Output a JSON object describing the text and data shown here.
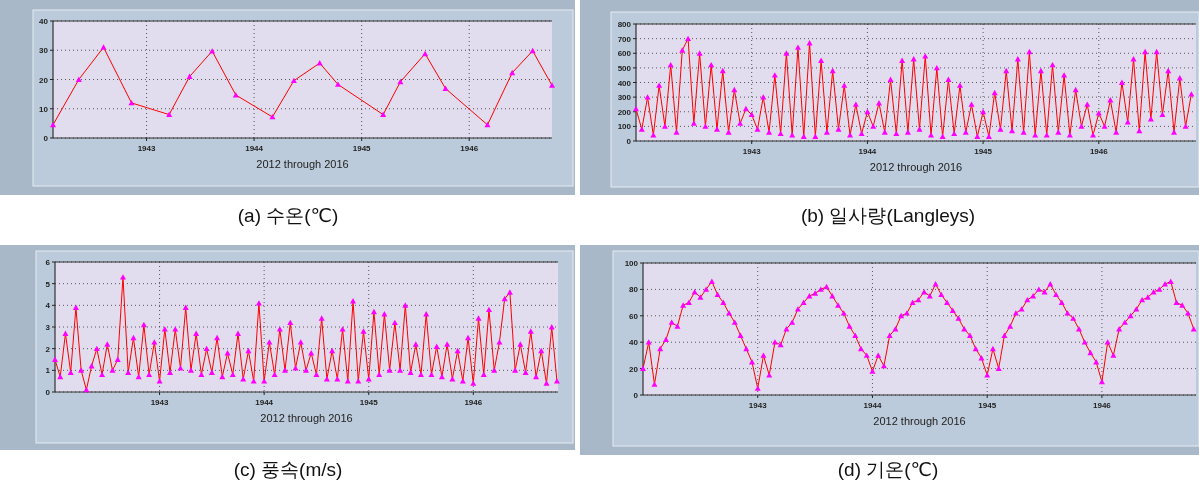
{
  "chart_data": [
    {
      "type": "line",
      "title": "(a) 수온(℃)",
      "xlabel": "2012 through 2016",
      "xlim": [
        1942.13,
        1946.77
      ],
      "xticks": [
        1943,
        1944,
        1945,
        1946
      ],
      "ylim": [
        0,
        40
      ],
      "yticks": [
        0,
        10,
        20,
        30,
        40
      ],
      "grid": true,
      "marker": "triangle",
      "line_style": "solid",
      "series": [
        {
          "color": "#ff00ff",
          "x": [
            1942.13,
            1942.37,
            1942.6,
            1942.86,
            1943.21,
            1943.4,
            1943.61,
            1943.83,
            1944.17,
            1944.37,
            1944.61,
            1944.78,
            1945.2,
            1945.36,
            1945.59,
            1945.78,
            1946.17,
            1946.4,
            1946.59,
            1946.77
          ],
          "values": [
            4.5,
            20,
            31,
            12,
            8,
            21,
            29.7,
            14.7,
            7.2,
            19.6,
            25.6,
            18.3,
            8,
            19.2,
            28.8,
            16.9,
            4.5,
            22.3,
            29.8,
            18
          ]
        }
      ]
    },
    {
      "type": "line",
      "title": "(b) 일사량(Langleys)",
      "xlabel": "2012 through 2016",
      "xlim": [
        1942.0,
        1946.84
      ],
      "xticks": [
        1943,
        1944,
        1945,
        1946
      ],
      "ylim": [
        0,
        800
      ],
      "yticks": [
        0,
        100,
        200,
        300,
        400,
        500,
        600,
        700,
        800
      ],
      "grid": true,
      "marker": "triangle",
      "line_style": "solid",
      "series": [
        {
          "color": "#ff00ff",
          "x": [
            1942.0,
            1942.05,
            1942.1,
            1942.15,
            1942.2,
            1942.25,
            1942.3,
            1942.35,
            1942.4,
            1942.45,
            1942.5,
            1942.55,
            1942.6,
            1942.65,
            1942.7,
            1942.75,
            1942.8,
            1942.85,
            1942.9,
            1942.95,
            1943.0,
            1943.05,
            1943.1,
            1943.15,
            1943.2,
            1943.25,
            1943.3,
            1943.35,
            1943.4,
            1943.45,
            1943.5,
            1943.55,
            1943.6,
            1943.65,
            1943.7,
            1943.75,
            1943.8,
            1943.85,
            1943.9,
            1943.95,
            1944.0,
            1944.05,
            1944.1,
            1944.15,
            1944.2,
            1944.25,
            1944.3,
            1944.35,
            1944.4,
            1944.45,
            1944.5,
            1944.55,
            1944.6,
            1944.65,
            1944.7,
            1944.75,
            1944.8,
            1944.85,
            1944.9,
            1944.95,
            1945.0,
            1945.05,
            1945.1,
            1945.15,
            1945.2,
            1945.25,
            1945.3,
            1945.35,
            1945.4,
            1945.45,
            1945.5,
            1945.55,
            1945.6,
            1945.65,
            1945.7,
            1945.75,
            1945.8,
            1945.85,
            1945.9,
            1945.95,
            1946.0,
            1946.05,
            1946.1,
            1946.15,
            1946.2,
            1946.25,
            1946.3,
            1946.35,
            1946.4,
            1946.45,
            1946.5,
            1946.55,
            1946.6,
            1946.65,
            1946.7,
            1946.75,
            1946.8
          ],
          "values": [
            220,
            80,
            300,
            40,
            380,
            100,
            520,
            60,
            620,
            700,
            120,
            600,
            100,
            520,
            80,
            480,
            60,
            350,
            120,
            220,
            180,
            80,
            300,
            60,
            450,
            50,
            600,
            40,
            640,
            30,
            670,
            30,
            550,
            60,
            480,
            80,
            380,
            40,
            250,
            50,
            200,
            100,
            260,
            60,
            420,
            50,
            550,
            60,
            560,
            80,
            580,
            40,
            500,
            30,
            420,
            50,
            380,
            60,
            250,
            30,
            200,
            30,
            330,
            80,
            480,
            70,
            560,
            60,
            610,
            40,
            480,
            40,
            520,
            60,
            450,
            40,
            350,
            100,
            250,
            40,
            190,
            100,
            280,
            60,
            400,
            130,
            560,
            70,
            610,
            150,
            610,
            180,
            480,
            60,
            430,
            100,
            320
          ]
        }
      ]
    },
    {
      "type": "line",
      "title": "(c) 풍속(m/s)",
      "xlabel": "2012 through 2016",
      "xlim": [
        1942.0,
        1946.81
      ],
      "xticks": [
        1943,
        1944,
        1945,
        1946
      ],
      "ylim": [
        0,
        6
      ],
      "yticks": [
        0,
        1,
        2,
        3,
        4,
        5,
        6
      ],
      "grid": true,
      "marker": "triangle",
      "line_style": "solid",
      "series": [
        {
          "color": "#ff00ff",
          "x": [
            1942.0,
            1942.05,
            1942.1,
            1942.15,
            1942.2,
            1942.25,
            1942.3,
            1942.35,
            1942.4,
            1942.45,
            1942.5,
            1942.55,
            1942.6,
            1942.65,
            1942.7,
            1942.75,
            1942.8,
            1942.85,
            1942.9,
            1942.95,
            1943.0,
            1943.05,
            1943.1,
            1943.15,
            1943.2,
            1943.25,
            1943.3,
            1943.35,
            1943.4,
            1943.45,
            1943.5,
            1943.55,
            1943.6,
            1943.65,
            1943.7,
            1943.75,
            1943.8,
            1943.85,
            1943.9,
            1943.95,
            1944.0,
            1944.05,
            1944.1,
            1944.15,
            1944.2,
            1944.25,
            1944.3,
            1944.35,
            1944.4,
            1944.45,
            1944.5,
            1944.55,
            1944.6,
            1944.65,
            1944.7,
            1944.75,
            1944.8,
            1944.85,
            1944.9,
            1944.95,
            1945.0,
            1945.05,
            1945.1,
            1945.15,
            1945.2,
            1945.25,
            1945.3,
            1945.35,
            1945.4,
            1945.45,
            1945.5,
            1945.55,
            1945.6,
            1945.65,
            1945.7,
            1945.75,
            1945.8,
            1945.85,
            1945.9,
            1945.95,
            1946.0,
            1946.05,
            1946.1,
            1946.15,
            1946.2,
            1946.25,
            1946.3,
            1946.35,
            1946.4,
            1946.45,
            1946.5,
            1946.55,
            1946.6,
            1946.65,
            1946.7,
            1946.75,
            1946.8
          ],
          "values": [
            1.5,
            0.7,
            2.7,
            0.9,
            3.9,
            1.0,
            0.1,
            1.2,
            2.0,
            0.8,
            2.2,
            1.0,
            1.5,
            5.3,
            0.9,
            2.5,
            0.7,
            3.1,
            0.8,
            2.3,
            0.5,
            2.9,
            0.9,
            2.9,
            1.1,
            3.9,
            1.0,
            2.7,
            0.8,
            2.0,
            0.9,
            2.5,
            0.7,
            1.8,
            0.8,
            2.7,
            0.6,
            1.9,
            0.5,
            4.1,
            0.5,
            2.3,
            0.8,
            2.9,
            1.0,
            3.2,
            1.1,
            2.3,
            1.0,
            1.8,
            0.8,
            3.4,
            0.6,
            1.9,
            0.6,
            2.9,
            0.5,
            4.2,
            0.5,
            2.8,
            0.6,
            3.7,
            0.8,
            3.6,
            1.0,
            3.2,
            1.0,
            4.0,
            0.9,
            2.2,
            0.8,
            3.6,
            0.8,
            2.1,
            0.7,
            2.2,
            0.6,
            1.9,
            0.5,
            2.5,
            0.4,
            3.4,
            0.8,
            3.8,
            1.0,
            2.3,
            4.3,
            4.6,
            1.0,
            2.2,
            0.9,
            2.8,
            0.7,
            1.9,
            0.4,
            3.0,
            0.5
          ]
        }
      ]
    },
    {
      "type": "line",
      "title": "(d) 기온(℃)",
      "xlabel": "2012 through 2016",
      "xlim": [
        1942.0,
        1946.82
      ],
      "xticks": [
        1943,
        1944,
        1945,
        1946
      ],
      "ylim": [
        0,
        100
      ],
      "yticks": [
        0,
        20,
        40,
        60,
        80,
        100
      ],
      "grid": true,
      "marker": "triangle",
      "line_style": "solid",
      "series": [
        {
          "color": "#ff00ff",
          "x": [
            1942.0,
            1942.05,
            1942.1,
            1942.15,
            1942.2,
            1942.25,
            1942.3,
            1942.35,
            1942.4,
            1942.45,
            1942.5,
            1942.55,
            1942.6,
            1942.65,
            1942.7,
            1942.75,
            1942.8,
            1942.85,
            1942.9,
            1942.95,
            1943.0,
            1943.05,
            1943.1,
            1943.15,
            1943.2,
            1943.25,
            1943.3,
            1943.35,
            1943.4,
            1943.45,
            1943.5,
            1943.55,
            1943.6,
            1943.65,
            1943.7,
            1943.75,
            1943.8,
            1943.85,
            1943.9,
            1943.95,
            1944.0,
            1944.05,
            1944.1,
            1944.15,
            1944.2,
            1944.25,
            1944.3,
            1944.35,
            1944.4,
            1944.45,
            1944.5,
            1944.55,
            1944.6,
            1944.65,
            1944.7,
            1944.75,
            1944.8,
            1944.85,
            1944.9,
            1944.95,
            1945.0,
            1945.05,
            1945.1,
            1945.15,
            1945.2,
            1945.25,
            1945.3,
            1945.35,
            1945.4,
            1945.45,
            1945.5,
            1945.55,
            1945.6,
            1945.65,
            1945.7,
            1945.75,
            1945.8,
            1945.85,
            1945.9,
            1945.95,
            1946.0,
            1946.05,
            1946.1,
            1946.15,
            1946.2,
            1946.25,
            1946.3,
            1946.35,
            1946.4,
            1946.45,
            1946.5,
            1946.55,
            1946.6,
            1946.65,
            1946.7,
            1946.75,
            1946.8
          ],
          "values": [
            20,
            40,
            8,
            35,
            42,
            55,
            52,
            68,
            70,
            78,
            74,
            80,
            86,
            76,
            70,
            62,
            55,
            45,
            35,
            25,
            5,
            30,
            15,
            40,
            38,
            50,
            55,
            65,
            70,
            75,
            77,
            80,
            82,
            75,
            68,
            62,
            52,
            45,
            35,
            30,
            18,
            30,
            22,
            45,
            50,
            60,
            62,
            70,
            72,
            78,
            75,
            84,
            76,
            70,
            64,
            58,
            50,
            45,
            35,
            28,
            15,
            35,
            20,
            45,
            52,
            62,
            65,
            72,
            75,
            80,
            78,
            84,
            76,
            70,
            62,
            58,
            50,
            40,
            32,
            25,
            10,
            40,
            30,
            50,
            55,
            60,
            65,
            72,
            74,
            78,
            80,
            84,
            86,
            70,
            68,
            62,
            50
          ]
        }
      ]
    }
  ]
}
